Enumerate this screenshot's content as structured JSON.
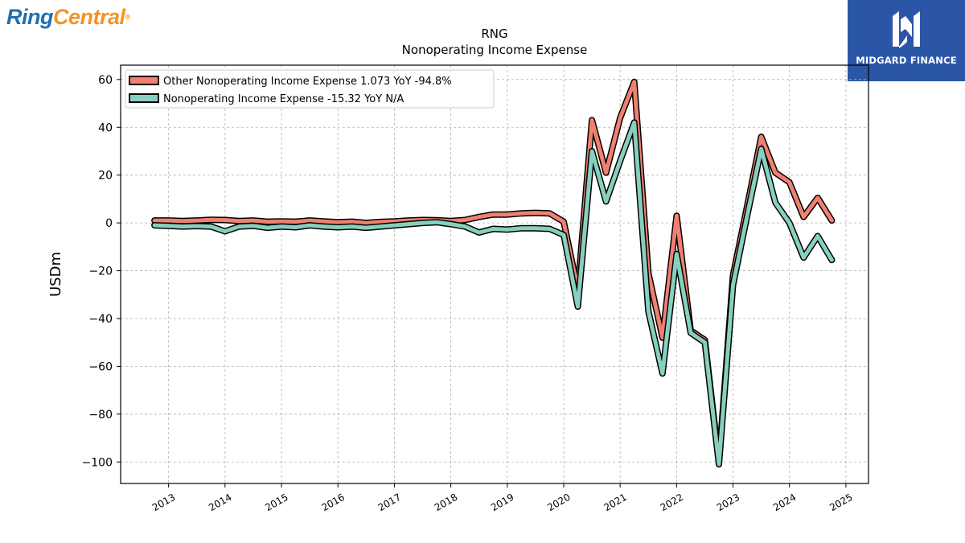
{
  "branding": {
    "left_logo_part1": "Ring",
    "left_logo_part2": "Central",
    "left_logo_mark": "®",
    "right_logo_text": "MIDGARD FINANCE",
    "right_logo_icon": "midgard-logo-icon",
    "left_logo_color_1": "#1f6fb2",
    "left_logo_color_2": "#f39323",
    "right_logo_bg": "#2b56a8"
  },
  "chart_data": {
    "type": "line",
    "title": "RNG",
    "subtitle": "Nonoperating Income Expense",
    "xlabel": "",
    "ylabel": "USDm",
    "xlim": [
      2012.15,
      2025.4
    ],
    "ylim": [
      -109,
      66
    ],
    "grid": true,
    "legend_position": "top-left",
    "x_ticks": [
      2013,
      2014,
      2015,
      2016,
      2017,
      2018,
      2019,
      2020,
      2021,
      2022,
      2023,
      2024,
      2025
    ],
    "x_tick_labels": [
      "2013",
      "2014",
      "2015",
      "2016",
      "2017",
      "2018",
      "2019",
      "2020",
      "2021",
      "2022",
      "2023",
      "2024",
      "2025"
    ],
    "y_ticks": [
      60,
      40,
      20,
      0,
      -20,
      -40,
      -60,
      -80,
      -100
    ],
    "y_tick_labels": [
      "60",
      "40",
      "20",
      "0",
      "−20",
      "−40",
      "−60",
      "−80",
      "−100"
    ],
    "x": [
      2012.75,
      2013.0,
      2013.25,
      2013.5,
      2013.75,
      2014.0,
      2014.25,
      2014.5,
      2014.75,
      2015.0,
      2015.25,
      2015.5,
      2015.75,
      2016.0,
      2016.25,
      2016.5,
      2016.75,
      2017.0,
      2017.25,
      2017.5,
      2017.75,
      2018.0,
      2018.25,
      2018.5,
      2018.75,
      2019.0,
      2019.25,
      2019.5,
      2019.75,
      2020.0,
      2020.25,
      2020.5,
      2020.75,
      2021.0,
      2021.25,
      2021.5,
      2021.75,
      2022.0,
      2022.25,
      2022.5,
      2022.75,
      2023.0,
      2023.25,
      2023.5,
      2023.75,
      2024.0,
      2024.25,
      2024.5,
      2024.75
    ],
    "series": [
      {
        "name": "Other Nonoperating Income Expense  1.073 YoY -94.8%",
        "color": "#f08070",
        "values": [
          1.0,
          1.0,
          0.8,
          1.0,
          1.3,
          1.2,
          0.8,
          1.0,
          0.5,
          0.6,
          0.5,
          1.0,
          0.6,
          0.3,
          0.5,
          0.0,
          0.4,
          0.6,
          1.0,
          1.2,
          1.1,
          0.8,
          1.2,
          2.5,
          3.5,
          3.5,
          4.0,
          4.2,
          4.0,
          0.5,
          -28.0,
          43.0,
          21.0,
          44.0,
          59.0,
          -21.0,
          -48.0,
          3.0,
          -45.0,
          -49.0,
          -100.0,
          -22.0,
          7.0,
          36.0,
          21.0,
          17.0,
          2.5,
          10.5,
          1.0
        ]
      },
      {
        "name": "Nonoperating Income Expense  -15.32 YoY N/A",
        "color": "#87cfbf",
        "values": [
          -1.0,
          -1.2,
          -1.5,
          -1.3,
          -1.5,
          -3.5,
          -1.5,
          -1.2,
          -2.0,
          -1.5,
          -1.8,
          -1.0,
          -1.5,
          -1.8,
          -1.5,
          -2.0,
          -1.5,
          -1.0,
          -0.5,
          0.0,
          0.3,
          -0.5,
          -1.5,
          -4.0,
          -2.5,
          -2.8,
          -2.2,
          -2.2,
          -2.5,
          -5.0,
          -35.0,
          30.0,
          9.0,
          26.0,
          42.0,
          -37.0,
          -63.0,
          -13.0,
          -46.0,
          -50.0,
          -101.0,
          -26.0,
          3.0,
          31.0,
          8.5,
          0.0,
          -14.5,
          -5.5,
          -15.5
        ]
      }
    ]
  }
}
